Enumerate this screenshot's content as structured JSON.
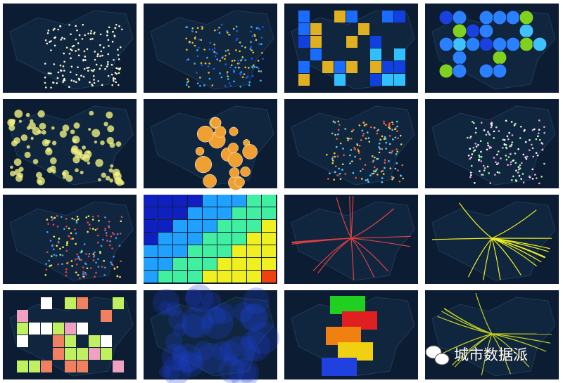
{
  "watermark": "城市数据派"
}
